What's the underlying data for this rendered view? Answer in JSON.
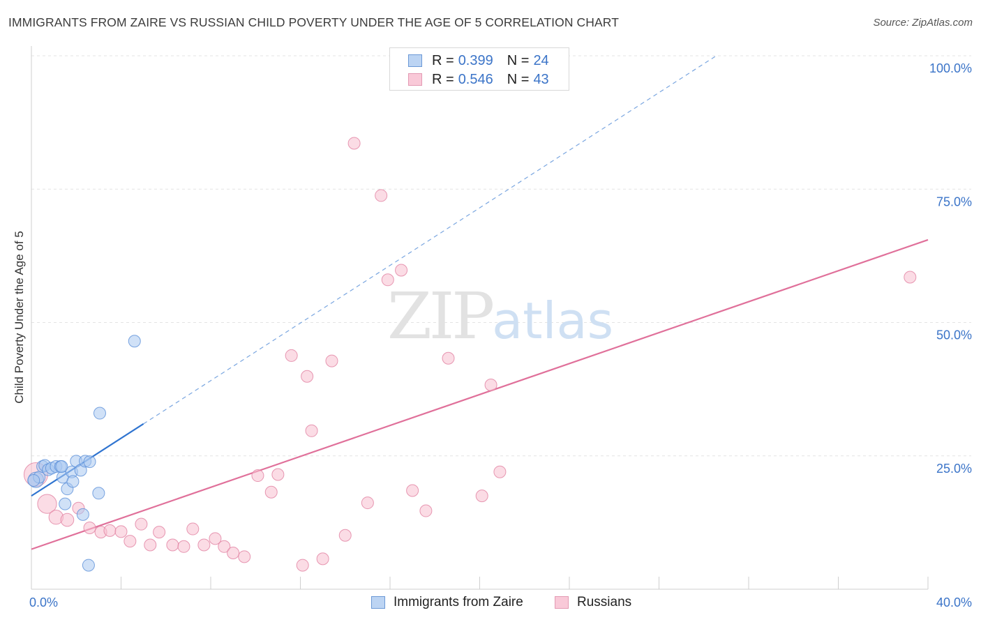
{
  "title": "IMMIGRANTS FROM ZAIRE VS RUSSIAN CHILD POVERTY UNDER THE AGE OF 5 CORRELATION CHART",
  "source": "Source: ZipAtlas.com",
  "watermark": {
    "zip": "ZIP",
    "atlas": "atlas"
  },
  "legend": [
    {
      "r_label": "R = ",
      "r_value": "0.399",
      "n_label": "N = ",
      "n_value": "24"
    },
    {
      "r_label": "R = ",
      "r_value": "0.546",
      "n_label": "N = ",
      "n_value": "43"
    }
  ],
  "bottom_legend": [
    {
      "label": "Immigrants from Zaire"
    },
    {
      "label": "Russians"
    }
  ],
  "colors": {
    "blue_fill": "#a9c9f0",
    "blue_stroke": "#5a8fd8",
    "blue_line": "#2f74d0",
    "pink_fill": "#f7bfd0",
    "pink_stroke": "#e17fa0",
    "pink_line": "#e0709a",
    "tick_text": "#3b74c8",
    "grid": "#e3e3e3"
  },
  "chart_data": {
    "type": "scatter",
    "title": "IMMIGRANTS FROM ZAIRE VS RUSSIAN CHILD POVERTY UNDER THE AGE OF 5 CORRELATION CHART",
    "xlabel": "",
    "ylabel": "Child Poverty Under the Age of 5",
    "xlim": [
      0,
      40
    ],
    "ylim": [
      0,
      100
    ],
    "x_tick_labels": [
      "0.0%",
      "40.0%"
    ],
    "y_ticks": [
      25,
      50,
      75,
      100
    ],
    "y_tick_labels": [
      "25.0%",
      "50.0%",
      "75.0%",
      "100.0%"
    ],
    "series": [
      {
        "name": "Immigrants from Zaire",
        "R": 0.399,
        "N": 24,
        "trend": {
          "x0": 0,
          "y0": 17.5,
          "x1": 5.0,
          "y1": 31.0,
          "dash_to_x": 30.5
        },
        "points": [
          {
            "x": 0.2,
            "y": 20.5,
            "s": 1.3
          },
          {
            "x": 0.35,
            "y": 21.0,
            "s": 1.0
          },
          {
            "x": 0.5,
            "y": 23.0,
            "s": 1.0
          },
          {
            "x": 0.6,
            "y": 23.2,
            "s": 1.0
          },
          {
            "x": 0.75,
            "y": 22.4,
            "s": 1.0
          },
          {
            "x": 0.9,
            "y": 22.7,
            "s": 1.0
          },
          {
            "x": 1.1,
            "y": 23.0,
            "s": 1.0
          },
          {
            "x": 1.3,
            "y": 23.0,
            "s": 1.0
          },
          {
            "x": 1.4,
            "y": 21.0,
            "s": 1.0
          },
          {
            "x": 1.5,
            "y": 16.0,
            "s": 1.0
          },
          {
            "x": 1.6,
            "y": 18.8,
            "s": 1.0
          },
          {
            "x": 1.8,
            "y": 22.0,
            "s": 1.0
          },
          {
            "x": 1.85,
            "y": 20.2,
            "s": 1.0
          },
          {
            "x": 2.0,
            "y": 24.0,
            "s": 1.0
          },
          {
            "x": 2.2,
            "y": 22.3,
            "s": 1.0
          },
          {
            "x": 2.3,
            "y": 14.0,
            "s": 1.0
          },
          {
            "x": 2.4,
            "y": 24.0,
            "s": 1.0
          },
          {
            "x": 2.6,
            "y": 23.9,
            "s": 1.0
          },
          {
            "x": 2.55,
            "y": 4.5,
            "s": 1.0
          },
          {
            "x": 3.0,
            "y": 18.0,
            "s": 1.0
          },
          {
            "x": 3.05,
            "y": 33.0,
            "s": 1.0
          },
          {
            "x": 4.6,
            "y": 46.5,
            "s": 1.0
          },
          {
            "x": 0.1,
            "y": 20.4,
            "s": 1.0
          },
          {
            "x": 1.35,
            "y": 23.0,
            "s": 1.0
          }
        ]
      },
      {
        "name": "Russians",
        "R": 0.546,
        "N": 43,
        "trend": {
          "x0": 0,
          "y0": 7.5,
          "x1": 40,
          "y1": 65.5
        },
        "points": [
          {
            "x": 0.2,
            "y": 21.5,
            "s": 2.0
          },
          {
            "x": 0.7,
            "y": 16.0,
            "s": 1.6
          },
          {
            "x": 1.1,
            "y": 13.5,
            "s": 1.2
          },
          {
            "x": 1.6,
            "y": 13.0,
            "s": 1.1
          },
          {
            "x": 2.1,
            "y": 15.2,
            "s": 1.0
          },
          {
            "x": 2.6,
            "y": 11.5,
            "s": 1.0
          },
          {
            "x": 3.1,
            "y": 10.7,
            "s": 1.0
          },
          {
            "x": 3.5,
            "y": 11.0,
            "s": 1.0
          },
          {
            "x": 4.0,
            "y": 10.8,
            "s": 1.0
          },
          {
            "x": 4.4,
            "y": 9.0,
            "s": 1.0
          },
          {
            "x": 4.9,
            "y": 12.2,
            "s": 1.0
          },
          {
            "x": 5.3,
            "y": 8.3,
            "s": 1.0
          },
          {
            "x": 5.7,
            "y": 10.7,
            "s": 1.0
          },
          {
            "x": 6.3,
            "y": 8.3,
            "s": 1.0
          },
          {
            "x": 6.8,
            "y": 8.0,
            "s": 1.0
          },
          {
            "x": 7.2,
            "y": 11.3,
            "s": 1.0
          },
          {
            "x": 7.7,
            "y": 8.3,
            "s": 1.0
          },
          {
            "x": 8.2,
            "y": 9.5,
            "s": 1.0
          },
          {
            "x": 8.6,
            "y": 8.0,
            "s": 1.0
          },
          {
            "x": 9.0,
            "y": 6.8,
            "s": 1.0
          },
          {
            "x": 9.5,
            "y": 6.1,
            "s": 1.0
          },
          {
            "x": 10.1,
            "y": 21.3,
            "s": 1.0
          },
          {
            "x": 10.7,
            "y": 18.2,
            "s": 1.0
          },
          {
            "x": 11.0,
            "y": 21.5,
            "s": 1.0
          },
          {
            "x": 11.6,
            "y": 43.8,
            "s": 1.0
          },
          {
            "x": 11.8,
            "y": 39.9,
            "s": 0.0
          },
          {
            "x": 12.3,
            "y": 39.9,
            "s": 1.0
          },
          {
            "x": 12.1,
            "y": 4.5,
            "s": 1.0
          },
          {
            "x": 12.5,
            "y": 29.7,
            "s": 1.0
          },
          {
            "x": 13.0,
            "y": 5.7,
            "s": 1.0
          },
          {
            "x": 13.4,
            "y": 42.8,
            "s": 1.0
          },
          {
            "x": 14.0,
            "y": 10.1,
            "s": 1.0
          },
          {
            "x": 14.4,
            "y": 83.6,
            "s": 1.0
          },
          {
            "x": 15.0,
            "y": 16.2,
            "s": 1.0
          },
          {
            "x": 15.6,
            "y": 73.8,
            "s": 1.0
          },
          {
            "x": 15.9,
            "y": 58.0,
            "s": 1.0
          },
          {
            "x": 16.5,
            "y": 59.8,
            "s": 1.0
          },
          {
            "x": 17.0,
            "y": 18.5,
            "s": 1.0
          },
          {
            "x": 17.6,
            "y": 14.7,
            "s": 1.0
          },
          {
            "x": 18.6,
            "y": 43.3,
            "s": 1.0
          },
          {
            "x": 20.1,
            "y": 17.5,
            "s": 1.0
          },
          {
            "x": 20.5,
            "y": 38.3,
            "s": 1.0
          },
          {
            "x": 20.9,
            "y": 22.0,
            "s": 1.0
          },
          {
            "x": 39.2,
            "y": 58.5,
            "s": 1.0
          }
        ]
      }
    ]
  }
}
